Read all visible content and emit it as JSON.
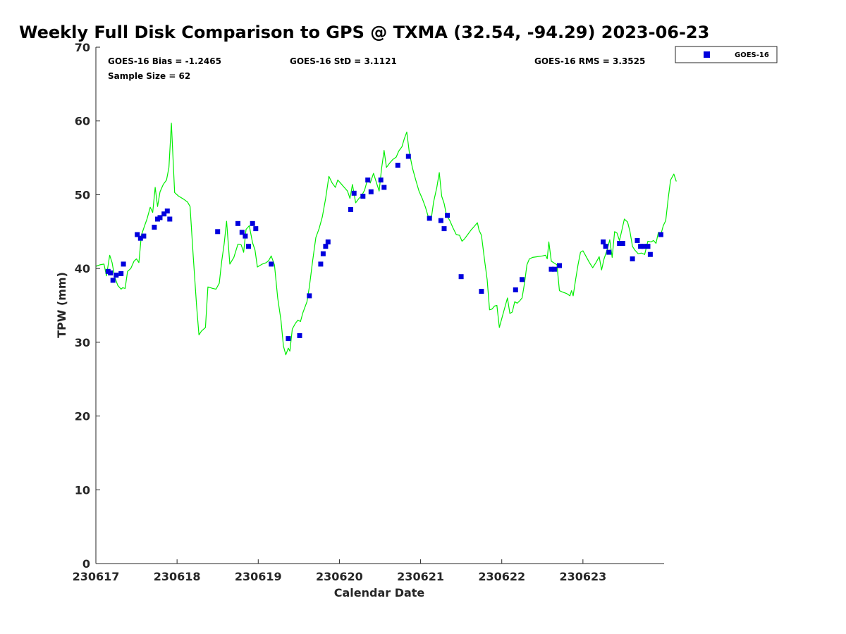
{
  "chart_data": {
    "type": "scatter",
    "title": "Weekly Full Disk Comparison to GPS @ TXMA (32.54, -94.29) 2023-06-23",
    "xlabel": "Calendar Date",
    "ylabel": "TPW (mm)",
    "xlim": [
      0,
      7
    ],
    "ylim": [
      0,
      70
    ],
    "yticks": [
      0,
      10,
      20,
      30,
      40,
      50,
      60,
      70
    ],
    "xticks": [
      0,
      1,
      2,
      3,
      4,
      5,
      6
    ],
    "xtick_labels": [
      "230617",
      "230618",
      "230619",
      "230620",
      "230621",
      "230622",
      "230623"
    ],
    "grid": false,
    "legend_position": "top-right outside",
    "stats": {
      "bias": "GOES-16 Bias = -1.2465",
      "std": "GOES-16 StD = 3.1121",
      "rms": "GOES-16 RMS = 3.3525",
      "sample": "Sample Size = 62"
    },
    "series": [
      {
        "name": "GOES-16",
        "kind": "scatter",
        "color": "#0000dd",
        "marker": "square",
        "points": [
          [
            0.15,
            39.6
          ],
          [
            0.18,
            39.4
          ],
          [
            0.21,
            38.4
          ],
          [
            0.25,
            39.1
          ],
          [
            0.31,
            39.3
          ],
          [
            0.34,
            40.6
          ],
          [
            0.51,
            44.6
          ],
          [
            0.55,
            44.1
          ],
          [
            0.59,
            44.4
          ],
          [
            0.72,
            45.6
          ],
          [
            0.76,
            46.7
          ],
          [
            0.79,
            46.9
          ],
          [
            0.84,
            47.4
          ],
          [
            0.88,
            47.8
          ],
          [
            0.91,
            46.7
          ],
          [
            1.5,
            45.0
          ],
          [
            1.75,
            46.1
          ],
          [
            1.8,
            44.9
          ],
          [
            1.84,
            44.4
          ],
          [
            1.88,
            43.0
          ],
          [
            1.93,
            46.1
          ],
          [
            1.97,
            45.4
          ],
          [
            2.16,
            40.6
          ],
          [
            2.37,
            30.5
          ],
          [
            2.51,
            30.9
          ],
          [
            2.63,
            36.3
          ],
          [
            2.77,
            40.6
          ],
          [
            2.8,
            42.0
          ],
          [
            2.83,
            43.0
          ],
          [
            2.86,
            43.6
          ],
          [
            3.14,
            48.0
          ],
          [
            3.18,
            50.2
          ],
          [
            3.29,
            49.8
          ],
          [
            3.35,
            52.0
          ],
          [
            3.39,
            50.4
          ],
          [
            3.51,
            52.0
          ],
          [
            3.55,
            51.0
          ],
          [
            3.72,
            54.0
          ],
          [
            3.85,
            55.2
          ],
          [
            4.11,
            46.8
          ],
          [
            4.25,
            46.5
          ],
          [
            4.29,
            45.4
          ],
          [
            4.33,
            47.2
          ],
          [
            4.5,
            38.9
          ],
          [
            4.75,
            36.9
          ],
          [
            5.17,
            37.1
          ],
          [
            5.25,
            38.5
          ],
          [
            5.61,
            39.9
          ],
          [
            5.65,
            39.9
          ],
          [
            5.71,
            40.4
          ],
          [
            6.25,
            43.6
          ],
          [
            6.28,
            43.0
          ],
          [
            6.32,
            42.2
          ],
          [
            6.45,
            43.4
          ],
          [
            6.49,
            43.4
          ],
          [
            6.61,
            41.3
          ],
          [
            6.67,
            43.8
          ],
          [
            6.71,
            43.0
          ],
          [
            6.75,
            43.0
          ],
          [
            6.8,
            43.0
          ],
          [
            6.83,
            41.9
          ],
          [
            6.96,
            44.6
          ]
        ]
      },
      {
        "name": "",
        "kind": "line",
        "color": "#00ee00",
        "points": [
          [
            0.0,
            40.3
          ],
          [
            0.05,
            40.5
          ],
          [
            0.1,
            40.6
          ],
          [
            0.13,
            39.0
          ],
          [
            0.17,
            41.8
          ],
          [
            0.2,
            40.8
          ],
          [
            0.23,
            38.9
          ],
          [
            0.27,
            37.7
          ],
          [
            0.31,
            37.2
          ],
          [
            0.33,
            37.4
          ],
          [
            0.36,
            37.3
          ],
          [
            0.39,
            39.6
          ],
          [
            0.43,
            40.0
          ],
          [
            0.47,
            41.0
          ],
          [
            0.5,
            41.3
          ],
          [
            0.53,
            40.8
          ],
          [
            0.56,
            44.5
          ],
          [
            0.6,
            45.8
          ],
          [
            0.63,
            46.7
          ],
          [
            0.67,
            48.3
          ],
          [
            0.7,
            47.6
          ],
          [
            0.73,
            51.0
          ],
          [
            0.76,
            48.4
          ],
          [
            0.79,
            50.4
          ],
          [
            0.83,
            51.4
          ],
          [
            0.87,
            52.0
          ],
          [
            0.9,
            53.7
          ],
          [
            0.93,
            59.7
          ],
          [
            0.97,
            50.3
          ],
          [
            1.02,
            49.8
          ],
          [
            1.08,
            49.4
          ],
          [
            1.13,
            49.0
          ],
          [
            1.16,
            48.4
          ],
          [
            1.2,
            41.5
          ],
          [
            1.24,
            35.0
          ],
          [
            1.27,
            31.0
          ],
          [
            1.3,
            31.5
          ],
          [
            1.35,
            32.0
          ],
          [
            1.38,
            37.5
          ],
          [
            1.44,
            37.3
          ],
          [
            1.48,
            37.2
          ],
          [
            1.52,
            38.0
          ],
          [
            1.55,
            41.0
          ],
          [
            1.58,
            43.3
          ],
          [
            1.61,
            46.4
          ],
          [
            1.65,
            40.6
          ],
          [
            1.7,
            41.5
          ],
          [
            1.75,
            43.3
          ],
          [
            1.79,
            43.2
          ],
          [
            1.82,
            42.2
          ],
          [
            1.85,
            45.3
          ],
          [
            1.89,
            45.8
          ],
          [
            1.93,
            43.5
          ],
          [
            1.96,
            42.5
          ],
          [
            1.99,
            40.2
          ],
          [
            2.05,
            40.6
          ],
          [
            2.1,
            40.8
          ],
          [
            2.13,
            41.1
          ],
          [
            2.16,
            41.7
          ],
          [
            2.2,
            40.5
          ],
          [
            2.24,
            36.0
          ],
          [
            2.28,
            33.0
          ],
          [
            2.31,
            29.5
          ],
          [
            2.34,
            28.3
          ],
          [
            2.37,
            29.2
          ],
          [
            2.39,
            28.8
          ],
          [
            2.42,
            31.8
          ],
          [
            2.46,
            32.6
          ],
          [
            2.49,
            33.0
          ],
          [
            2.52,
            32.8
          ],
          [
            2.55,
            34.0
          ],
          [
            2.6,
            35.5
          ],
          [
            2.63,
            37.5
          ],
          [
            2.67,
            41.0
          ],
          [
            2.71,
            44.2
          ],
          [
            2.75,
            45.4
          ],
          [
            2.79,
            47.0
          ],
          [
            2.83,
            49.5
          ],
          [
            2.87,
            52.5
          ],
          [
            2.91,
            51.6
          ],
          [
            2.95,
            51.0
          ],
          [
            2.98,
            52.0
          ],
          [
            3.02,
            51.5
          ],
          [
            3.06,
            51.0
          ],
          [
            3.1,
            50.5
          ],
          [
            3.13,
            49.5
          ],
          [
            3.16,
            51.4
          ],
          [
            3.2,
            48.9
          ],
          [
            3.24,
            49.5
          ],
          [
            3.27,
            49.8
          ],
          [
            3.31,
            50.6
          ],
          [
            3.35,
            52.2
          ],
          [
            3.38,
            51.6
          ],
          [
            3.42,
            52.9
          ],
          [
            3.46,
            51.5
          ],
          [
            3.49,
            50.5
          ],
          [
            3.52,
            53.6
          ],
          [
            3.55,
            56.0
          ],
          [
            3.58,
            53.7
          ],
          [
            3.62,
            54.3
          ],
          [
            3.66,
            54.8
          ],
          [
            3.7,
            55.1
          ],
          [
            3.73,
            55.9
          ],
          [
            3.77,
            56.5
          ],
          [
            3.8,
            57.6
          ],
          [
            3.83,
            58.5
          ],
          [
            3.86,
            55.8
          ],
          [
            3.9,
            53.6
          ],
          [
            3.94,
            52.0
          ],
          [
            3.98,
            50.5
          ],
          [
            4.02,
            49.5
          ],
          [
            4.06,
            48.3
          ],
          [
            4.1,
            46.8
          ],
          [
            4.13,
            46.6
          ],
          [
            4.16,
            49.0
          ],
          [
            4.2,
            51.0
          ],
          [
            4.23,
            53.0
          ],
          [
            4.26,
            49.8
          ],
          [
            4.29,
            48.8
          ],
          [
            4.32,
            47.2
          ],
          [
            4.36,
            46.5
          ],
          [
            4.4,
            45.5
          ],
          [
            4.44,
            44.6
          ],
          [
            4.48,
            44.5
          ],
          [
            4.51,
            43.7
          ],
          [
            4.54,
            44.0
          ],
          [
            4.58,
            44.6
          ],
          [
            4.62,
            45.2
          ],
          [
            4.66,
            45.7
          ],
          [
            4.7,
            46.2
          ],
          [
            4.72,
            45.2
          ],
          [
            4.75,
            44.5
          ],
          [
            4.79,
            41.0
          ],
          [
            4.82,
            38.5
          ],
          [
            4.85,
            34.4
          ],
          [
            4.88,
            34.5
          ],
          [
            4.91,
            34.9
          ],
          [
            4.94,
            35.0
          ],
          [
            4.97,
            32.0
          ],
          [
            5.0,
            33.2
          ],
          [
            5.04,
            34.8
          ],
          [
            5.07,
            36.0
          ],
          [
            5.1,
            33.9
          ],
          [
            5.13,
            34.1
          ],
          [
            5.16,
            35.5
          ],
          [
            5.19,
            35.3
          ],
          [
            5.22,
            35.6
          ],
          [
            5.25,
            36.0
          ],
          [
            5.28,
            38.0
          ],
          [
            5.31,
            40.5
          ],
          [
            5.34,
            41.3
          ],
          [
            5.38,
            41.5
          ],
          [
            5.44,
            41.6
          ],
          [
            5.5,
            41.7
          ],
          [
            5.54,
            41.8
          ],
          [
            5.56,
            41.3
          ],
          [
            5.58,
            43.6
          ],
          [
            5.61,
            41.0
          ],
          [
            5.65,
            40.7
          ],
          [
            5.68,
            40.5
          ],
          [
            5.71,
            37.0
          ],
          [
            5.75,
            36.8
          ],
          [
            5.8,
            36.6
          ],
          [
            5.84,
            36.3
          ],
          [
            5.86,
            37.0
          ],
          [
            5.88,
            36.3
          ],
          [
            5.91,
            38.5
          ],
          [
            5.94,
            40.5
          ],
          [
            5.97,
            42.2
          ],
          [
            6.0,
            42.4
          ],
          [
            6.04,
            41.6
          ],
          [
            6.08,
            40.8
          ],
          [
            6.12,
            40.1
          ],
          [
            6.16,
            40.8
          ],
          [
            6.2,
            41.6
          ],
          [
            6.23,
            39.8
          ],
          [
            6.26,
            41.3
          ],
          [
            6.3,
            42.6
          ],
          [
            6.33,
            43.9
          ],
          [
            6.36,
            41.5
          ],
          [
            6.39,
            45.0
          ],
          [
            6.42,
            44.8
          ],
          [
            6.45,
            43.8
          ],
          [
            6.48,
            45.2
          ],
          [
            6.51,
            46.7
          ],
          [
            6.55,
            46.3
          ],
          [
            6.58,
            45.0
          ],
          [
            6.61,
            43.0
          ],
          [
            6.64,
            42.5
          ],
          [
            6.68,
            42.0
          ],
          [
            6.72,
            42.1
          ],
          [
            6.76,
            41.9
          ],
          [
            6.8,
            43.7
          ],
          [
            6.84,
            43.6
          ],
          [
            6.87,
            43.8
          ],
          [
            6.9,
            43.4
          ],
          [
            6.93,
            44.9
          ],
          [
            6.96,
            44.6
          ],
          [
            6.99,
            45.8
          ],
          [
            7.02,
            46.5
          ],
          [
            7.05,
            49.5
          ],
          [
            7.08,
            52.0
          ],
          [
            7.12,
            52.8
          ],
          [
            7.15,
            51.8
          ]
        ]
      }
    ]
  }
}
